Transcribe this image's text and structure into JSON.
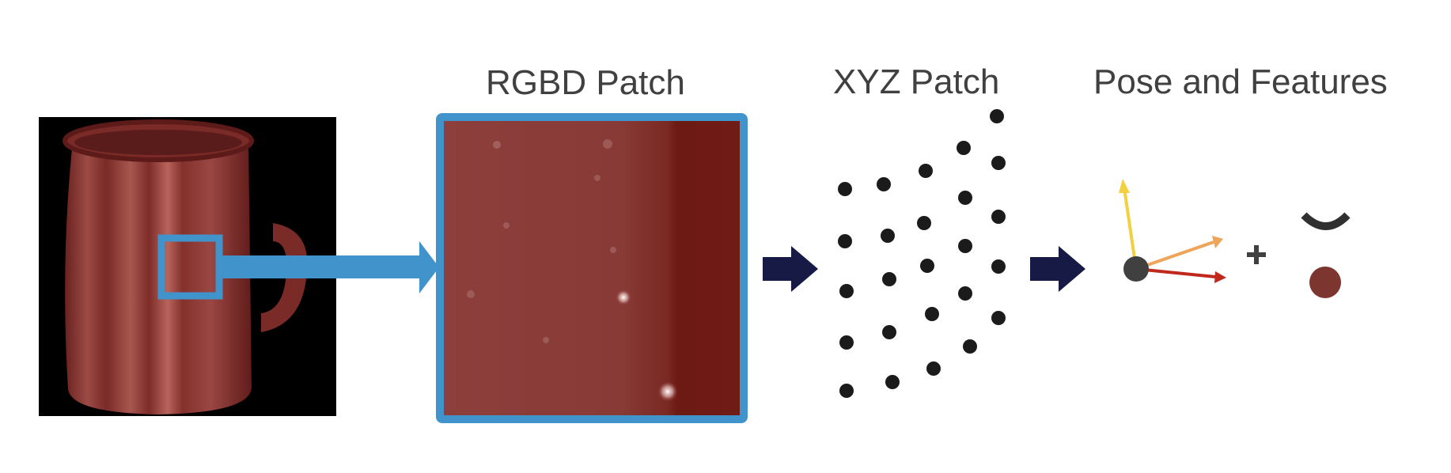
{
  "labels": {
    "rgbd": "RGBD Patch",
    "xyz": "XYZ Patch",
    "pose": "Pose and Features"
  },
  "colors": {
    "background": "#ffffff",
    "mug": "#8a2f2c",
    "mug_dark": "#5c1a18",
    "mug_light": "#b5605a",
    "patch_fill": "#8a3a38",
    "patch_edge": "#6e1a14",
    "selection_blue": "#4193cc",
    "flow_arrow": "#161a45",
    "point": "#1b1b1b",
    "pose_origin": "#404040",
    "axis_yellow": "#f2d040",
    "axis_orange": "#eea55a",
    "axis_red": "#c0281c",
    "curvature": "#303030",
    "feature_color": "#7d3530"
  },
  "icons": [
    "mug-image",
    "selection-box",
    "projection-arrow",
    "flow-arrow",
    "point-cloud",
    "pose-axes",
    "plus-sign",
    "curvature-glyph",
    "color-feature-dot"
  ]
}
